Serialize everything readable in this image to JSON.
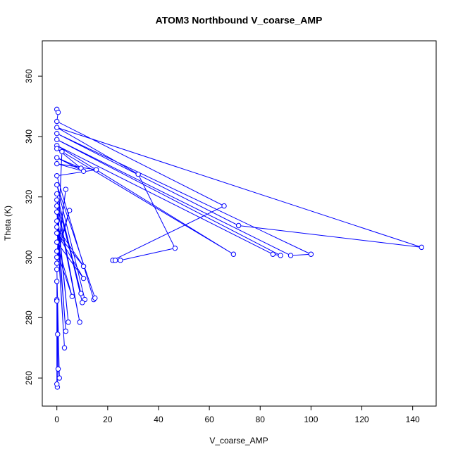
{
  "chart_data": {
    "type": "line",
    "title": "ATOM3 Northbound V_coarse_AMP",
    "x_label": "V_coarse_AMP",
    "y_label": "Theta (K)",
    "color": "#0000ff",
    "markers": true,
    "x": [
      0,
      0.5,
      0,
      65.8,
      22,
      23,
      25,
      46.5,
      32,
      0,
      143.5,
      71.5,
      0,
      100,
      92,
      0,
      88,
      85,
      0,
      69.5,
      0,
      9.5,
      0,
      10.5,
      0,
      15.5,
      0,
      14.5,
      15,
      0,
      11,
      10,
      0,
      9.5,
      0,
      9,
      0,
      4.5,
      0,
      3.5,
      0,
      3,
      0,
      10.5,
      0,
      10.5,
      0,
      6,
      0,
      5,
      0,
      3.5,
      0,
      2,
      0,
      1,
      0.5,
      0,
      0.2,
      0,
      0,
      0.3,
      0
    ],
    "values": [
      349,
      348,
      345,
      317,
      299,
      299,
      299,
      303,
      327.5,
      343,
      303.3,
      310.5,
      341,
      301,
      300.6,
      339,
      300.6,
      301,
      337,
      301,
      336,
      329.5,
      333,
      328.5,
      331,
      329,
      327,
      286,
      286.5,
      324,
      286,
      285,
      321,
      288,
      319,
      278.5,
      317,
      278.5,
      315,
      275.5,
      312,
      270,
      310,
      297,
      308,
      293,
      305,
      287,
      302,
      315.5,
      300,
      322.5,
      298,
      335,
      296,
      260,
      263,
      292,
      257,
      258,
      286,
      274.5,
      285.5
    ],
    "xlim": [
      -5.74,
      149.24
    ],
    "ylim": [
      250.7,
      371.7
    ],
    "xticks": [
      0,
      20,
      40,
      60,
      80,
      100,
      120,
      140
    ],
    "yticks": [
      260,
      280,
      300,
      320,
      340,
      360
    ]
  }
}
